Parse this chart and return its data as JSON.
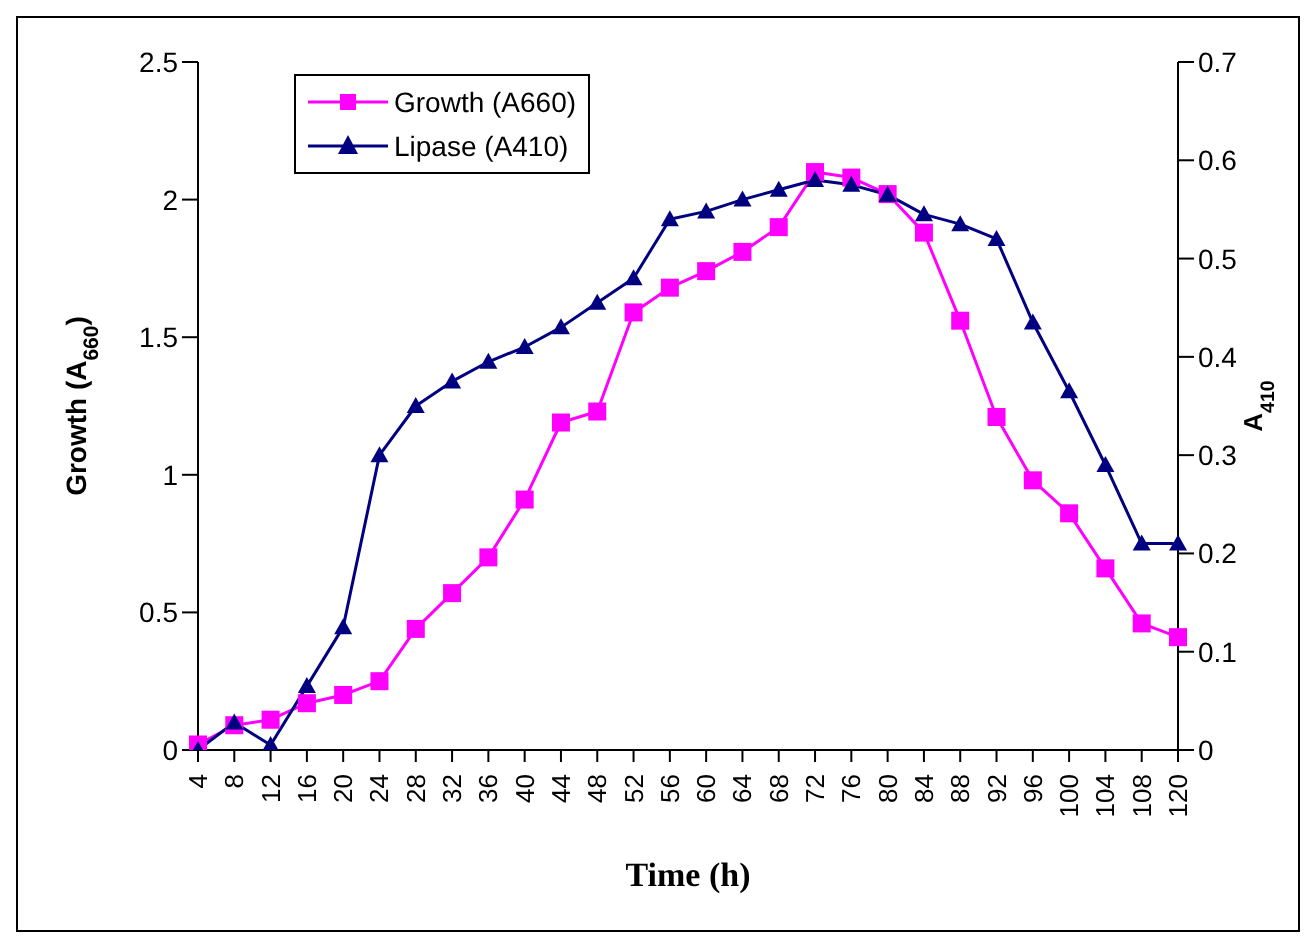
{
  "chart_data": {
    "type": "line",
    "xlabel": "Time (h)",
    "ylabel": "Growth (A$_{660}$)",
    "y2label": "A$_{410}$",
    "categories": [
      "4",
      "8",
      "12",
      "16",
      "20",
      "24",
      "28",
      "32",
      "36",
      "40",
      "44",
      "48",
      "52",
      "56",
      "60",
      "64",
      "68",
      "72",
      "76",
      "80",
      "84",
      "88",
      "92",
      "96",
      "100",
      "104",
      "108",
      "120"
    ],
    "series": [
      {
        "name": "Growth (A660)",
        "color": "#ff00ff",
        "marker": "square",
        "values": [
          0.02,
          0.09,
          0.11,
          0.17,
          0.2,
          0.25,
          0.44,
          0.57,
          0.7,
          0.91,
          1.19,
          1.23,
          1.59,
          1.68,
          1.74,
          1.81,
          1.9,
          2.1,
          2.08,
          2.02,
          1.88,
          1.56,
          1.21,
          0.98,
          0.86,
          0.66,
          0.46,
          0.41
        ]
      },
      {
        "name": "Lipase (A410)",
        "color": "#000080",
        "marker": "triangle",
        "axis": "y2",
        "values": [
          0,
          0.028,
          0.005,
          0.065,
          0.125,
          0.3,
          0.35,
          0.375,
          0.395,
          0.41,
          0.43,
          0.455,
          0.48,
          0.54,
          0.548,
          0.56,
          0.57,
          0.58,
          0.575,
          0.565,
          0.545,
          0.535,
          0.52,
          0.435,
          0.365,
          0.29,
          0.21,
          0.21
        ]
      }
    ],
    "ylim": [
      0,
      2.5
    ],
    "yticks": [
      0,
      0.5,
      1,
      1.5,
      2,
      2.5
    ],
    "y2lim": [
      0,
      0.7
    ],
    "y2ticks": [
      0,
      0.1,
      0.2,
      0.3,
      0.4,
      0.5,
      0.6,
      0.7
    ],
    "grid": false,
    "legend": "top left",
    "line_style": "solid"
  }
}
